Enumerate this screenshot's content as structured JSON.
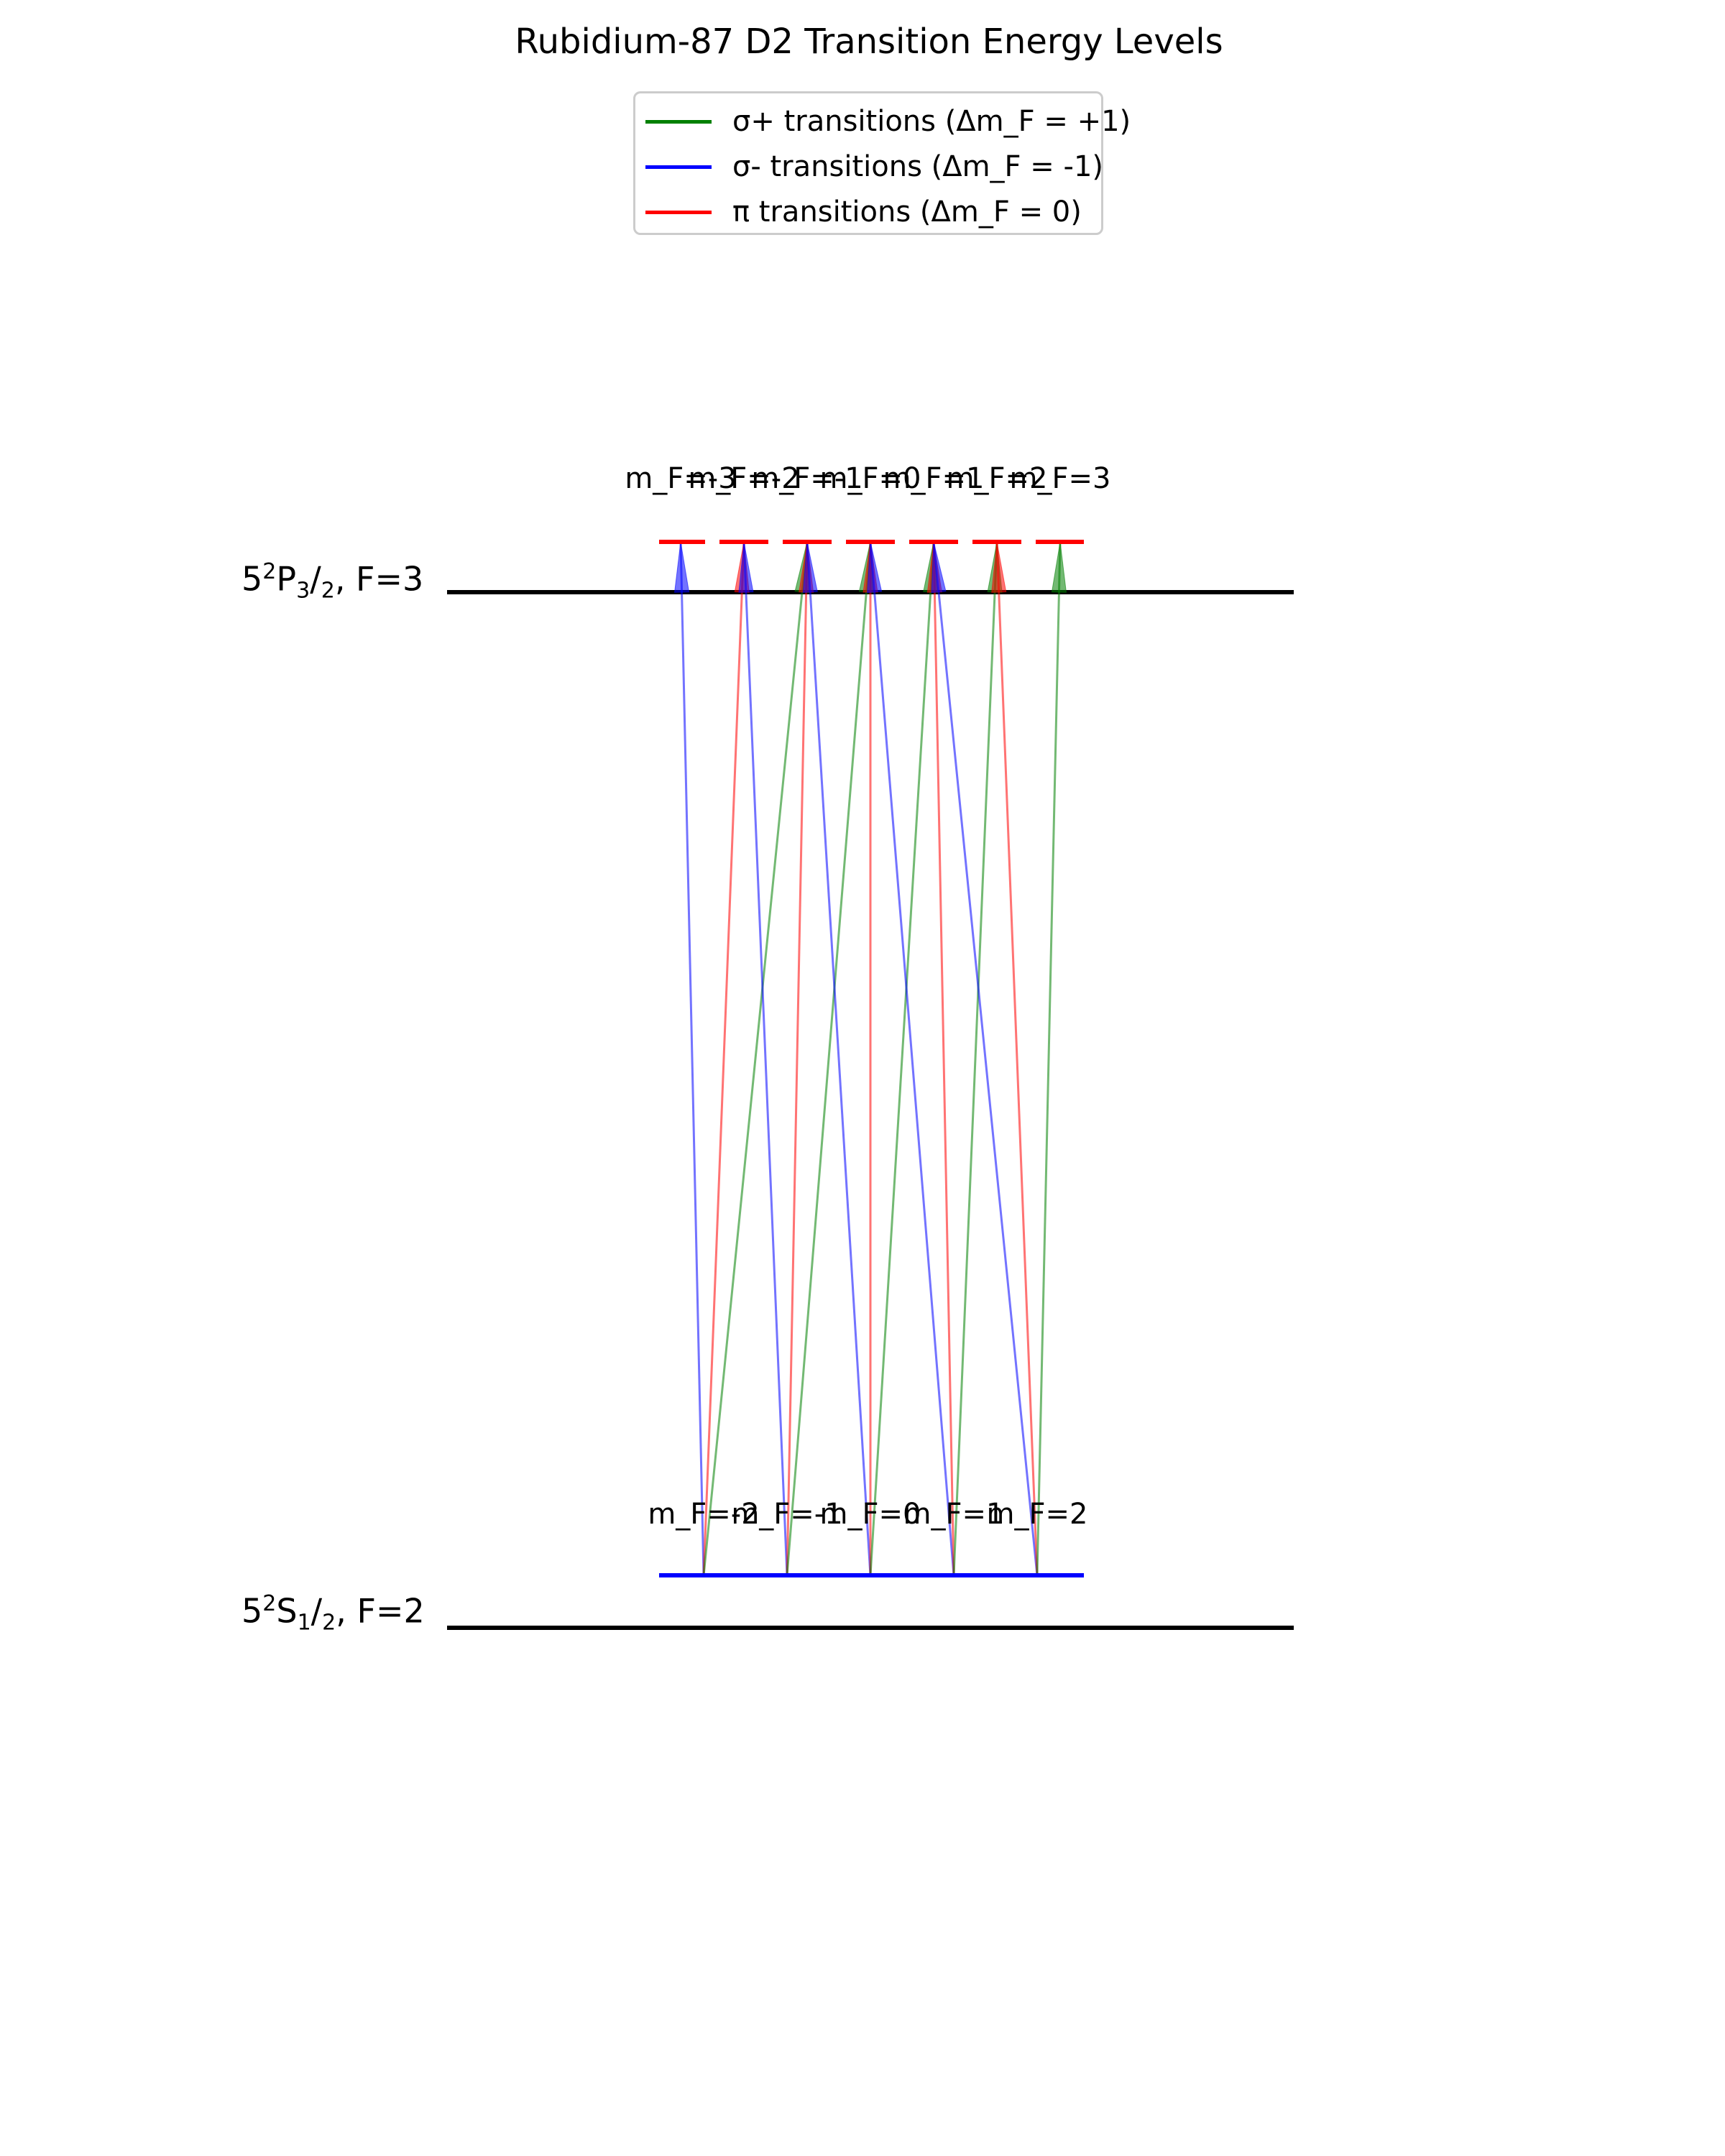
{
  "title": "Rubidium-87 D2 Transition Energy Levels",
  "legend": [
    {
      "label": "σ+ transitions (Δm_F = +1)",
      "color": "#008000"
    },
    {
      "label": "σ- transitions (Δm_F = -1)",
      "color": "#0000ff"
    },
    {
      "label": "π transitions (Δm_F = 0)",
      "color": "#ff0000"
    }
  ],
  "levels": {
    "excited": {
      "label_main": "5",
      "label_sup": "2",
      "label_p": "P",
      "label_sub1": "3",
      "label_slash": "/",
      "label_sub2": "2",
      "label_tail": ", F=3"
    },
    "ground": {
      "label_main": "5",
      "label_sup": "2",
      "label_p": "S",
      "label_sub1": "1",
      "label_slash": "/",
      "label_sub2": "2",
      "label_tail": ", F=2"
    }
  },
  "excited_sublevels": [
    "m_F=-3",
    "m_F=-2",
    "m_F=-1",
    "m_F=0",
    "m_F=1",
    "m_F=2",
    "m_F=3"
  ],
  "ground_sublevels": [
    "m_F=-2",
    "m_F=-1",
    "m_F=0",
    "m_F=1",
    "m_F=2"
  ],
  "transitions": [
    {
      "ground_mF": -2,
      "excited_mF": -3,
      "type": "sigma-"
    },
    {
      "ground_mF": -2,
      "excited_mF": -2,
      "type": "pi"
    },
    {
      "ground_mF": -2,
      "excited_mF": -1,
      "type": "sigma+"
    },
    {
      "ground_mF": -1,
      "excited_mF": -2,
      "type": "sigma-"
    },
    {
      "ground_mF": -1,
      "excited_mF": -1,
      "type": "pi"
    },
    {
      "ground_mF": -1,
      "excited_mF": 0,
      "type": "sigma+"
    },
    {
      "ground_mF": 0,
      "excited_mF": -1,
      "type": "sigma-"
    },
    {
      "ground_mF": 0,
      "excited_mF": 0,
      "type": "pi"
    },
    {
      "ground_mF": 0,
      "excited_mF": 1,
      "type": "sigma+"
    },
    {
      "ground_mF": 1,
      "excited_mF": 0,
      "type": "sigma-"
    },
    {
      "ground_mF": 1,
      "excited_mF": 1,
      "type": "pi"
    },
    {
      "ground_mF": 1,
      "excited_mF": 2,
      "type": "sigma+"
    },
    {
      "ground_mF": 2,
      "excited_mF": 1,
      "type": "sigma-"
    },
    {
      "ground_mF": 2,
      "excited_mF": 2,
      "type": "pi"
    },
    {
      "ground_mF": 2,
      "excited_mF": 3,
      "type": "sigma+"
    }
  ],
  "colors": {
    "sigma+": "#008000",
    "sigma-": "#0000ff",
    "pi": "#ff0000",
    "level": "#000000",
    "excited_sublevel": "#ff0000",
    "ground_sublevel": "#0000ff"
  }
}
